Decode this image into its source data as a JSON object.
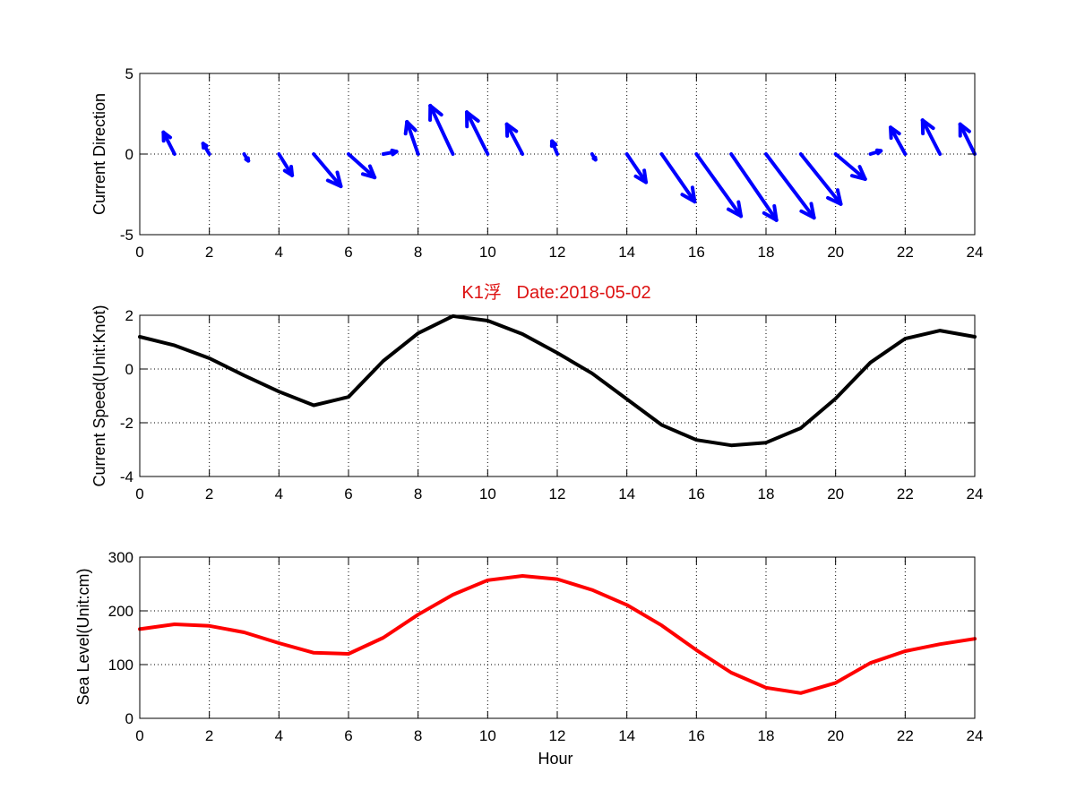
{
  "chart_data": [
    {
      "type": "quiver",
      "ylabel": "Current Direction",
      "xlim": [
        0,
        24
      ],
      "ylim": [
        -5,
        5
      ],
      "x_ticks": [
        0,
        2,
        4,
        6,
        8,
        10,
        12,
        14,
        16,
        18,
        20,
        22,
        24
      ],
      "y_ticks": [
        -5,
        0,
        5
      ],
      "color": "#0000ff",
      "vectors": [
        {
          "x": 0,
          "u": 0,
          "v": 0
        },
        {
          "x": 1,
          "u": -0.32,
          "v": 1.35
        },
        {
          "x": 2,
          "u": -0.18,
          "v": 0.65
        },
        {
          "x": 3,
          "u": 0.12,
          "v": -0.42
        },
        {
          "x": 4,
          "u": 0.38,
          "v": -1.32
        },
        {
          "x": 5,
          "u": 0.78,
          "v": -2.0
        },
        {
          "x": 6,
          "u": 0.75,
          "v": -1.45
        },
        {
          "x": 7,
          "u": 0.38,
          "v": 0.15
        },
        {
          "x": 8,
          "u": -0.32,
          "v": 2.0
        },
        {
          "x": 9,
          "u": -0.65,
          "v": 3.0
        },
        {
          "x": 10,
          "u": -0.6,
          "v": 2.6
        },
        {
          "x": 11,
          "u": -0.45,
          "v": 1.85
        },
        {
          "x": 12,
          "u": -0.15,
          "v": 0.8
        },
        {
          "x": 13,
          "u": 0.1,
          "v": -0.35
        },
        {
          "x": 14,
          "u": 0.55,
          "v": -1.75
        },
        {
          "x": 15,
          "u": 0.95,
          "v": -2.95
        },
        {
          "x": 16,
          "u": 1.28,
          "v": -3.85
        },
        {
          "x": 17,
          "u": 1.3,
          "v": -4.1
        },
        {
          "x": 18,
          "u": 1.38,
          "v": -3.95
        },
        {
          "x": 19,
          "u": 1.15,
          "v": -3.1
        },
        {
          "x": 20,
          "u": 0.85,
          "v": -1.55
        },
        {
          "x": 21,
          "u": 0.3,
          "v": 0.2
        },
        {
          "x": 22,
          "u": -0.42,
          "v": 1.65
        },
        {
          "x": 23,
          "u": -0.5,
          "v": 2.1
        },
        {
          "x": 24,
          "u": -0.42,
          "v": 1.85
        }
      ]
    },
    {
      "type": "line",
      "title": "K1浮   Date:2018-05-02",
      "ylabel": "Current Speed(Unit:Knot)",
      "xlim": [
        0,
        24
      ],
      "ylim": [
        -4,
        2
      ],
      "x_ticks": [
        0,
        2,
        4,
        6,
        8,
        10,
        12,
        14,
        16,
        18,
        20,
        22,
        24
      ],
      "y_ticks": [
        -4,
        -2,
        0,
        2
      ],
      "color": "#000000",
      "x": [
        0,
        1,
        2,
        3,
        4,
        5,
        6,
        7,
        8,
        9,
        10,
        11,
        12,
        13,
        14,
        15,
        16,
        17,
        18,
        19,
        20,
        21,
        22,
        23,
        24
      ],
      "y": [
        1.2,
        0.88,
        0.4,
        -0.24,
        -0.84,
        -1.35,
        -1.04,
        0.3,
        1.33,
        1.97,
        1.8,
        1.3,
        0.6,
        -0.16,
        -1.12,
        -2.08,
        -2.64,
        -2.84,
        -2.74,
        -2.2,
        -1.1,
        0.24,
        1.13,
        1.43,
        1.2
      ]
    },
    {
      "type": "line",
      "ylabel": "Sea Level(Unit:cm)",
      "xlabel": "Hour",
      "xlim": [
        0,
        24
      ],
      "ylim": [
        0,
        300
      ],
      "x_ticks": [
        0,
        2,
        4,
        6,
        8,
        10,
        12,
        14,
        16,
        18,
        20,
        22,
        24
      ],
      "y_ticks": [
        0,
        100,
        200,
        300
      ],
      "color": "#ff0000",
      "x": [
        0,
        1,
        2,
        3,
        4,
        5,
        6,
        7,
        8,
        9,
        10,
        11,
        12,
        13,
        14,
        15,
        16,
        17,
        18,
        19,
        20,
        21,
        22,
        23,
        24
      ],
      "y": [
        166,
        175,
        172,
        160,
        140,
        122,
        120,
        150,
        193,
        230,
        257,
        265,
        259,
        239,
        211,
        173,
        127,
        85,
        57,
        47,
        66,
        103,
        125,
        138,
        148
      ]
    }
  ]
}
